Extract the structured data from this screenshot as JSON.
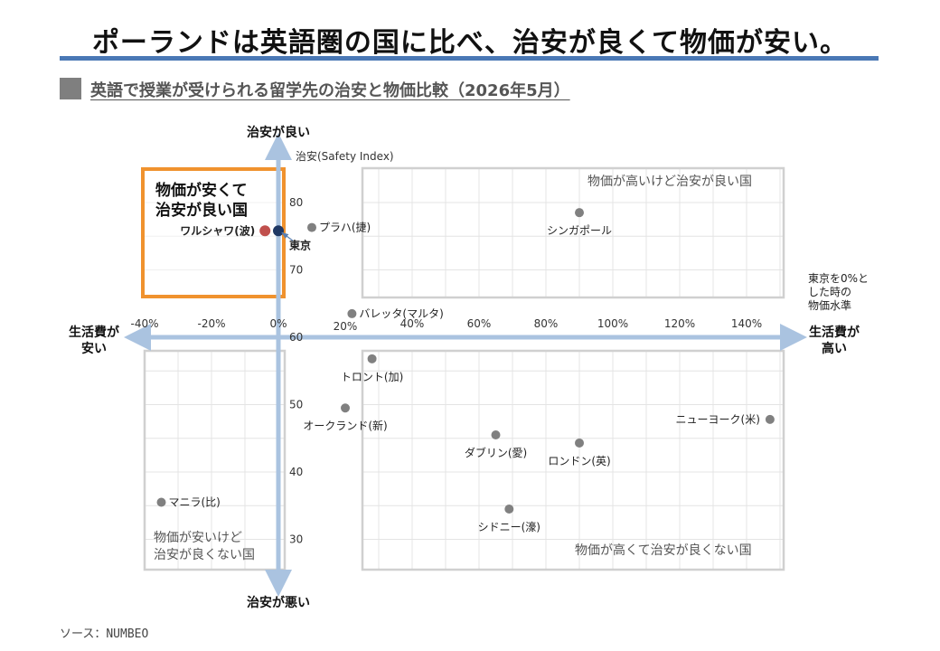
{
  "title": "ポーランドは英語圏の国に比べ、治安が良くて物価が安い。",
  "subtitle": "英語で授業が受けられる留学先の治安と物価比較（2026年5月）",
  "source": "ソース：NUMBEO",
  "axis_ends": {
    "top": "治安が良い",
    "bottom": "治安が悪い",
    "left_line1": "生活費が",
    "left_line2": "安い",
    "right_line1": "生活費が",
    "right_line2": "高い"
  },
  "x_axis_note": [
    "東京を0%と",
    "した時の",
    "物価水準"
  ],
  "quadrants": {
    "highlight": [
      "物価が安くて",
      "治安が良い国"
    ],
    "top_right": "物価が高いけど治安が良い国",
    "bottom_left": [
      "物価が安いけど",
      "治安が良くない国"
    ],
    "bottom_right": "物価が高くて治安が良くない国"
  },
  "colors": {
    "rule": "#4a78b5",
    "axis": "#aac3e0",
    "highlight_box": "#f0922e",
    "warsaw": "#c0504d",
    "tokyo": "#1f3864",
    "points": "#808080",
    "quadrant_border": "#d0d0d0",
    "grid": "#e4e4e4"
  },
  "chart_data": {
    "type": "scatter",
    "ylabel": "治安(Safety Index)",
    "xlim": [
      -40,
      150
    ],
    "ylim": [
      25,
      87
    ],
    "x_ticks": [
      "-40%",
      "-20%",
      "0%",
      "20%",
      "40%",
      "60%",
      "80%",
      "100%",
      "120%",
      "140%"
    ],
    "x_tick_values": [
      -40,
      -20,
      0,
      20,
      40,
      60,
      80,
      100,
      120,
      140
    ],
    "y_ticks": [
      30,
      40,
      50,
      60,
      70,
      80
    ],
    "points": [
      {
        "label": "ワルシャワ(波)",
        "x": -4,
        "y": 75.8,
        "color": "#c0504d",
        "label_pos": "left"
      },
      {
        "label": "東京",
        "x": 0,
        "y": 75.8,
        "color": "#1f3864",
        "label_pos": "below-right"
      },
      {
        "label": "プラハ(捷)",
        "x": 10,
        "y": 76.3,
        "color": "#808080",
        "label_pos": "right"
      },
      {
        "label": "シンガポール",
        "x": 90,
        "y": 78.5,
        "color": "#808080",
        "label_pos": "below"
      },
      {
        "label": "バレッタ(マルタ)",
        "x": 22,
        "y": 63.5,
        "color": "#808080",
        "label_pos": "right"
      },
      {
        "label": "トロント(加)",
        "x": 28,
        "y": 56.8,
        "color": "#808080",
        "label_pos": "below"
      },
      {
        "label": "オークランド(新)",
        "x": 20,
        "y": 49.5,
        "color": "#808080",
        "label_pos": "below"
      },
      {
        "label": "ニューヨーク(米)",
        "x": 147,
        "y": 47.8,
        "color": "#808080",
        "label_pos": "left"
      },
      {
        "label": "ダブリン(愛)",
        "x": 65,
        "y": 45.5,
        "color": "#808080",
        "label_pos": "below"
      },
      {
        "label": "ロンドン(英)",
        "x": 90,
        "y": 44.3,
        "color": "#808080",
        "label_pos": "below"
      },
      {
        "label": "マニラ(比)",
        "x": -35,
        "y": 35.5,
        "color": "#808080",
        "label_pos": "right"
      },
      {
        "label": "シドニー(濠)",
        "x": 69,
        "y": 34.5,
        "color": "#808080",
        "label_pos": "below"
      }
    ]
  }
}
